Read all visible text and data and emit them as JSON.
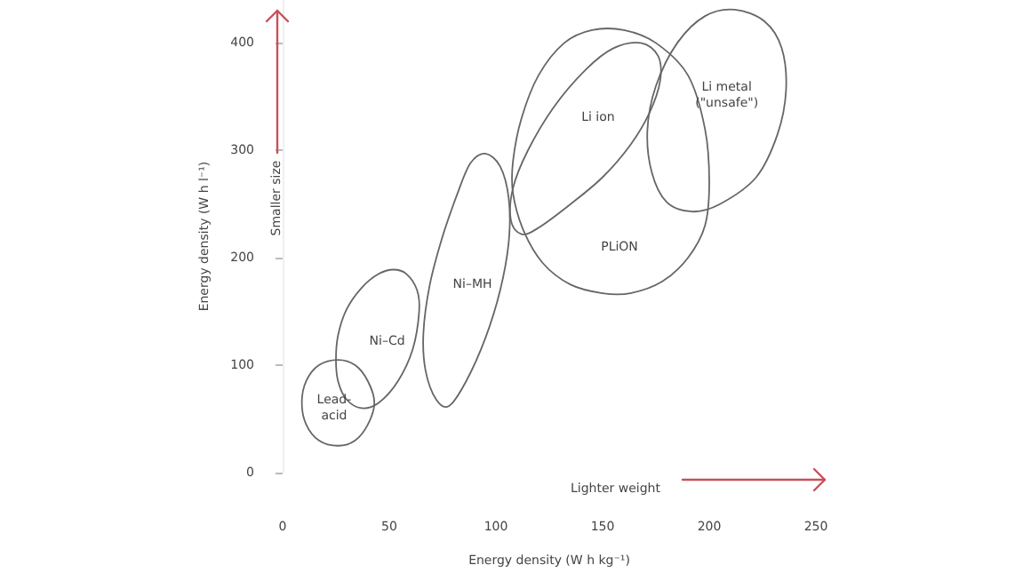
{
  "chart_data": {
    "type": "line",
    "xlabel": "Energy density (W h kg⁻¹)",
    "ylabel": "Energy density (W h l⁻¹)",
    "xlim": [
      0,
      250
    ],
    "xticks": [
      0,
      50,
      100,
      150,
      200,
      250
    ],
    "ylim": [
      0,
      440
    ],
    "yticks": [
      0,
      100,
      200,
      300,
      400
    ],
    "annotations": [
      "Lead-acid",
      "Ni–Cd",
      "Ni–MH",
      "PLiON",
      "Li ion",
      "Li metal (\"unsafe\")",
      "Smaller size",
      "Lighter weight"
    ]
  }
}
